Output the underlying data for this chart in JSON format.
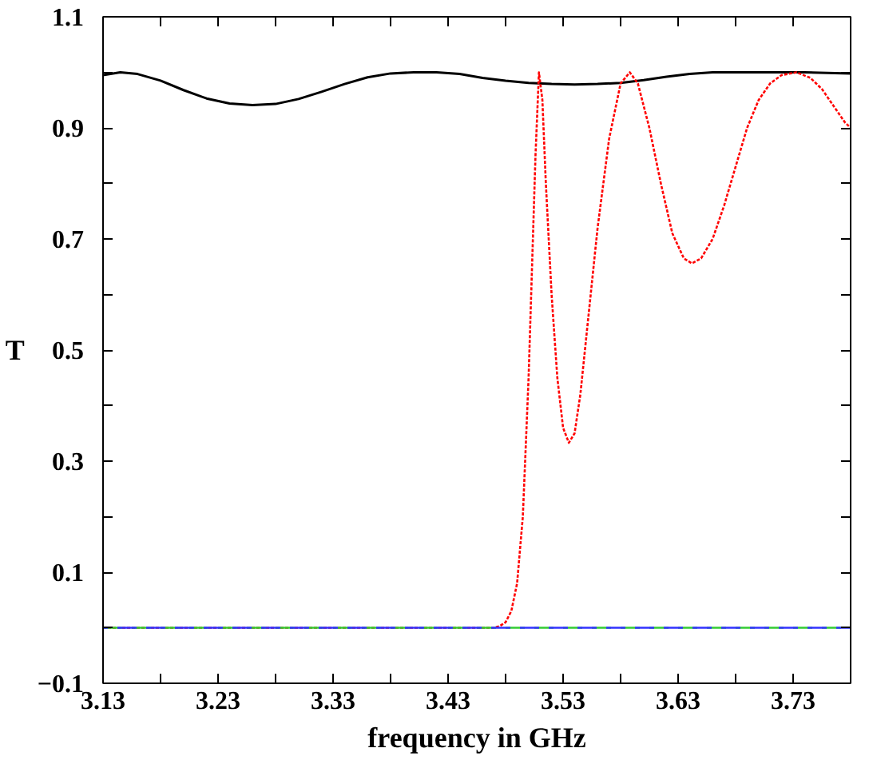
{
  "chart_data": {
    "type": "line",
    "xlabel": "frequency in GHz",
    "ylabel": "T",
    "xlim": [
      3.13,
      3.78
    ],
    "ylim": [
      -0.1,
      1.1
    ],
    "xticks": [
      3.13,
      {
        "value": 3.18,
        "label": null
      },
      3.23,
      {
        "value": 3.28,
        "label": null
      },
      3.33,
      {
        "value": 3.38,
        "label": null
      },
      3.43,
      {
        "value": 3.48,
        "label": null
      },
      3.53,
      {
        "value": 3.58,
        "label": null
      },
      3.63,
      {
        "value": 3.68,
        "label": null
      },
      3.73
    ],
    "yticks": [
      -0.1,
      {
        "value": 0,
        "label": null
      },
      0.1,
      {
        "value": 0.2,
        "label": null
      },
      0.3,
      {
        "value": 0.4,
        "label": null
      },
      0.5,
      {
        "value": 0.6,
        "label": null
      },
      0.7,
      {
        "value": 0.8,
        "label": null
      },
      0.9,
      {
        "value": 1.0,
        "label": null
      },
      1.1
    ],
    "grid": false,
    "series": [
      {
        "color": "#000000",
        "line_style": "solid",
        "x": [
          3.13,
          3.145,
          3.16,
          3.18,
          3.2,
          3.22,
          3.24,
          3.26,
          3.28,
          3.3,
          3.32,
          3.34,
          3.36,
          3.38,
          3.4,
          3.42,
          3.44,
          3.46,
          3.48,
          3.5,
          3.52,
          3.54,
          3.56,
          3.58,
          3.6,
          3.62,
          3.64,
          3.66,
          3.7,
          3.74,
          3.78
        ],
        "values": [
          0.995,
          1.0,
          0.997,
          0.985,
          0.968,
          0.953,
          0.944,
          0.941,
          0.943,
          0.952,
          0.965,
          0.979,
          0.991,
          0.998,
          1.0,
          1.0,
          0.997,
          0.99,
          0.985,
          0.981,
          0.979,
          0.978,
          0.979,
          0.981,
          0.986,
          0.992,
          0.997,
          1.0,
          1.0,
          1.0,
          0.998
        ]
      },
      {
        "color": "#ff0000",
        "line_style": "dotted",
        "x": [
          3.13,
          3.3,
          3.47,
          3.475,
          3.48,
          3.485,
          3.49,
          3.495,
          3.5,
          3.503,
          3.506,
          3.509,
          3.512,
          3.515,
          3.52,
          3.525,
          3.53,
          3.535,
          3.54,
          3.545,
          3.55,
          3.56,
          3.57,
          3.58,
          3.588,
          3.595,
          3.605,
          3.615,
          3.625,
          3.635,
          3.642,
          3.65,
          3.66,
          3.67,
          3.68,
          3.69,
          3.7,
          3.71,
          3.72,
          3.733,
          3.745,
          3.755,
          3.765,
          3.775,
          3.78
        ],
        "values": [
          0,
          0,
          0,
          0.003,
          0.01,
          0.03,
          0.08,
          0.2,
          0.45,
          0.65,
          0.85,
          1.0,
          0.95,
          0.8,
          0.6,
          0.45,
          0.36,
          0.333,
          0.35,
          0.42,
          0.52,
          0.72,
          0.88,
          0.98,
          1.0,
          0.98,
          0.9,
          0.8,
          0.71,
          0.665,
          0.656,
          0.665,
          0.7,
          0.76,
          0.83,
          0.9,
          0.95,
          0.98,
          0.995,
          1.0,
          0.99,
          0.97,
          0.94,
          0.91,
          0.9
        ]
      },
      {
        "color": "#33cc33",
        "line_style": "dashed",
        "x": [
          3.13,
          3.78
        ],
        "values": [
          0,
          0
        ]
      },
      {
        "color": "#3333ff",
        "line_style": "dashed",
        "x": [
          3.13,
          3.78
        ],
        "values": [
          0,
          0
        ]
      }
    ]
  }
}
